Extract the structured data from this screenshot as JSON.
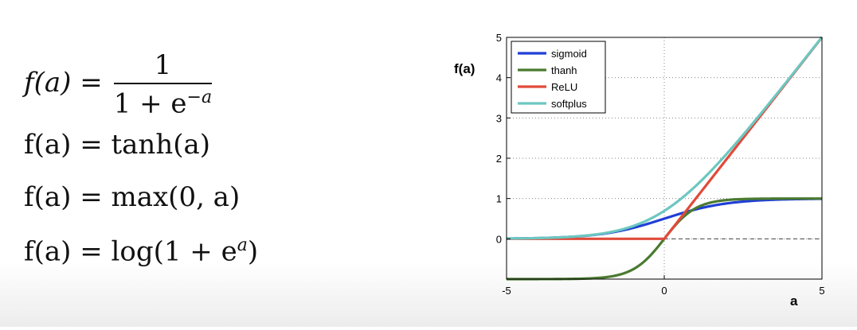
{
  "formulas": {
    "sigmoid": {
      "lhs": "f(a) =",
      "numerator": "1",
      "denominator": "1 + e",
      "exponent": "−a"
    },
    "tanh": {
      "text": "f(a) = tanh(a)"
    },
    "relu": {
      "text": "f(a) = max(0, a)"
    },
    "softplus": {
      "text": "f(a) = log(1 + e",
      "exponent": "a",
      "close": ")"
    }
  },
  "chart_data": {
    "type": "line",
    "title": "",
    "xlabel": "a",
    "ylabel": "f(a)",
    "xlim": [
      -5,
      5
    ],
    "ylim": [
      -1,
      5
    ],
    "xticks": [
      -5,
      0,
      5
    ],
    "yticks": [
      0,
      1,
      2,
      3,
      4,
      5
    ],
    "grid": "dotted",
    "legend_position": "top-left",
    "series": [
      {
        "name": "sigmoid",
        "color": "#1f3fd6",
        "function": "sigmoid"
      },
      {
        "name": "thanh",
        "color": "#4a7a30",
        "function": "tanh"
      },
      {
        "name": "ReLU",
        "color": "#e04a3a",
        "function": "relu"
      },
      {
        "name": "softplus",
        "color": "#6cc7c0",
        "function": "softplus"
      }
    ],
    "x": [
      -5,
      -4,
      -3,
      -2,
      -1,
      0,
      1,
      2,
      3,
      4,
      5
    ]
  }
}
